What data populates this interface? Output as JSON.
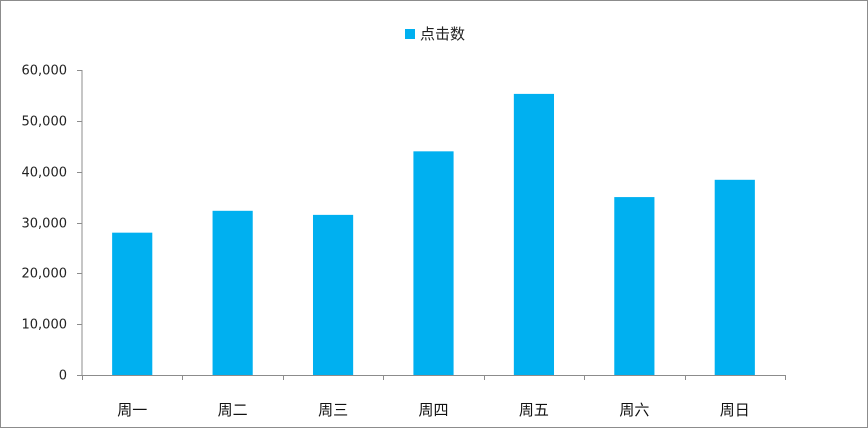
{
  "chart_data": {
    "type": "bar",
    "categories": [
      "周一",
      "周二",
      "周三",
      "周四",
      "周五",
      "周六",
      "周日"
    ],
    "series": [
      {
        "name": "点击数",
        "values": [
          28000,
          32300,
          31500,
          44000,
          55300,
          35000,
          38400
        ]
      }
    ],
    "ylim": [
      0,
      60000
    ],
    "yticks": [
      0,
      10000,
      20000,
      30000,
      40000,
      50000,
      60000
    ],
    "ytick_labels": [
      "0",
      "10,000",
      "20,000",
      "30,000",
      "40,000",
      "50,000",
      "60,000"
    ],
    "grid": false,
    "legend_position": "top-center",
    "bar_color": "#00b0f0"
  }
}
